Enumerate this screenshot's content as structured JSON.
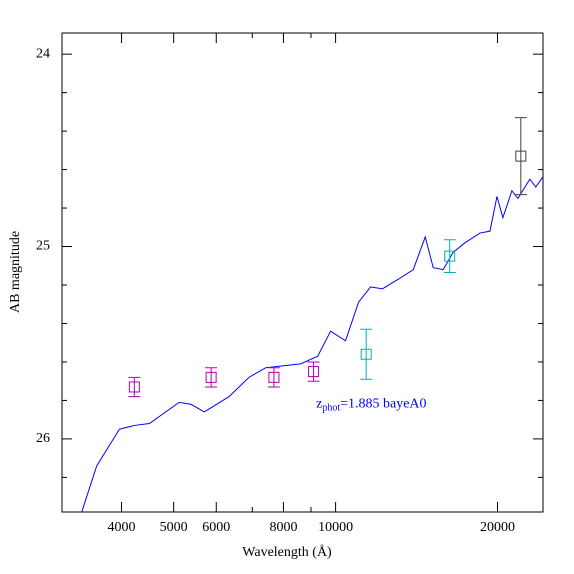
{
  "chart_data": {
    "type": "line",
    "x_label": "Wavelength (Å)",
    "y_label": "AB magnitude",
    "xscale": "log",
    "y_inverted": true,
    "xlim": [
      3100,
      24300
    ],
    "ylim": [
      26.38,
      23.89
    ],
    "xticks": [
      4000,
      5000,
      6000,
      8000,
      10000,
      20000
    ],
    "xminorticks": [
      7000,
      9000
    ],
    "yticks": [
      24,
      25,
      26
    ],
    "yminorticks": [
      24.2,
      24.4,
      24.6,
      24.8,
      25.2,
      25.4,
      25.6,
      25.8,
      26.2
    ],
    "annotation": {
      "base": "z",
      "sub": "phot",
      "text": "=1.885 bayeA0",
      "color": "#0000ff",
      "x": 9200,
      "y": 25.82
    },
    "series": [
      {
        "style": "line",
        "color": "#0000ff",
        "x": [
          3373,
          3597,
          3963,
          4226,
          4508,
          5117,
          5383,
          5702,
          6339,
          6902,
          7417,
          8011,
          8610,
          9263,
          9789,
          10435,
          11031,
          11611,
          12222,
          13080,
          13944,
          14678,
          15190,
          15849,
          16540,
          17408,
          18556,
          19364,
          19953,
          20464,
          21272,
          21824,
          22966,
          23561,
          24270
        ],
        "values": [
          26.38,
          26.14,
          25.95,
          25.93,
          25.92,
          25.81,
          25.82,
          25.86,
          25.78,
          25.68,
          25.63,
          25.62,
          25.61,
          25.57,
          25.44,
          25.49,
          25.29,
          25.21,
          25.22,
          25.17,
          25.12,
          24.95,
          25.11,
          25.12,
          25.03,
          24.98,
          24.93,
          24.92,
          24.74,
          24.85,
          24.71,
          24.75,
          24.65,
          24.69,
          24.64
        ]
      },
      {
        "style": "errorbar",
        "color": "#b000b0",
        "x": [
          4225,
          5870,
          7680,
          9100
        ],
        "values": [
          25.73,
          25.68,
          25.68,
          25.65
        ],
        "errors": [
          0.05,
          0.05,
          0.05,
          0.05
        ]
      },
      {
        "style": "errorbar",
        "color": "#00b0b0",
        "x": [
          11400,
          16300
        ],
        "values": [
          25.56,
          25.05
        ],
        "errors": [
          0.13,
          0.085
        ]
      },
      {
        "style": "errorbar",
        "color": "#404040",
        "x": [
          22100
        ],
        "values": [
          24.53
        ],
        "errors": [
          0.2
        ]
      }
    ]
  }
}
